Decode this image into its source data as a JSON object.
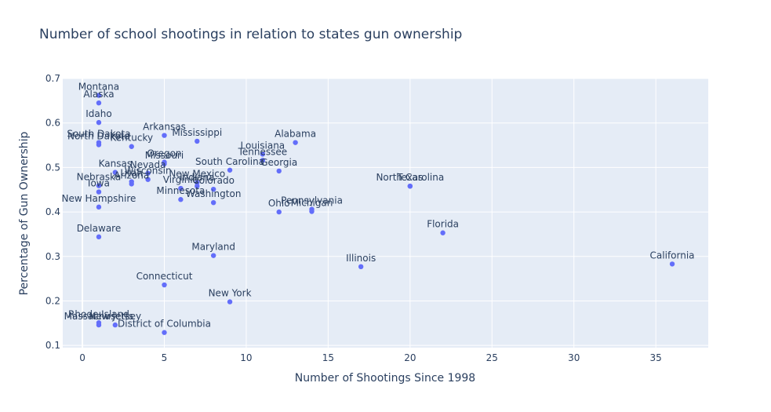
{
  "chart_data": {
    "type": "scatter",
    "title": "Number of school shootings in relation to states gun ownership",
    "xlabel": "Number of Shootings Since 1998",
    "ylabel": "Percentage of Gun Ownership",
    "xlim": [
      -1.2,
      38.2
    ],
    "ylim": [
      0.095,
      0.7
    ],
    "x_ticks": [
      0,
      5,
      10,
      15,
      20,
      25,
      30,
      35
    ],
    "y_ticks": [
      0.1,
      0.2,
      0.3,
      0.4,
      0.5,
      0.6,
      0.7
    ],
    "grid": true,
    "marker_color": "#636efa",
    "points": [
      {
        "label": "Montana",
        "x": 1,
        "y": 0.662
      },
      {
        "label": "Alaska",
        "x": 1,
        "y": 0.645
      },
      {
        "label": "Idaho",
        "x": 1,
        "y": 0.601
      },
      {
        "label": "South Dakota",
        "x": 1,
        "y": 0.556
      },
      {
        "label": "North Dakota",
        "x": 1,
        "y": 0.551
      },
      {
        "label": "Kentucky",
        "x": 3,
        "y": 0.547
      },
      {
        "label": "Arkansas",
        "x": 5,
        "y": 0.572
      },
      {
        "label": "Mississippi",
        "x": 7,
        "y": 0.559
      },
      {
        "label": "Alabama",
        "x": 13,
        "y": 0.556
      },
      {
        "label": "Louisiana",
        "x": 11,
        "y": 0.53
      },
      {
        "label": "Tennessee",
        "x": 11,
        "y": 0.516
      },
      {
        "label": "Oregon",
        "x": 5,
        "y": 0.512
      },
      {
        "label": "Missouri",
        "x": 5,
        "y": 0.508
      },
      {
        "label": "South Carolina",
        "x": 9,
        "y": 0.494
      },
      {
        "label": "Georgia",
        "x": 12,
        "y": 0.492
      },
      {
        "label": "Kansas",
        "x": 2,
        "y": 0.489
      },
      {
        "label": "Nevada",
        "x": 4,
        "y": 0.487
      },
      {
        "label": "Utah",
        "x": 3,
        "y": 0.468
      },
      {
        "label": "Arizona",
        "x": 3,
        "y": 0.463
      },
      {
        "label": "Wisconsin",
        "x": 4,
        "y": 0.473
      },
      {
        "label": "New Mexico",
        "x": 7,
        "y": 0.466
      },
      {
        "label": "Indiana",
        "x": 7,
        "y": 0.458
      },
      {
        "label": "Virginia",
        "x": 6,
        "y": 0.453
      },
      {
        "label": "Colorado",
        "x": 8,
        "y": 0.451
      },
      {
        "label": "North Carolina",
        "x": 20,
        "y": 0.458
      },
      {
        "label": "Texas",
        "x": 20,
        "y": 0.458
      },
      {
        "label": "Nebraska",
        "x": 1,
        "y": 0.459
      },
      {
        "label": "Iowa",
        "x": 1,
        "y": 0.445
      },
      {
        "label": "Minnesota",
        "x": 6,
        "y": 0.428
      },
      {
        "label": "Washington",
        "x": 8,
        "y": 0.421
      },
      {
        "label": "New Hampshire",
        "x": 1,
        "y": 0.411
      },
      {
        "label": "Ohio",
        "x": 12,
        "y": 0.4
      },
      {
        "label": "Pennsylvania",
        "x": 14,
        "y": 0.406
      },
      {
        "label": "Michigan",
        "x": 14,
        "y": 0.401
      },
      {
        "label": "Delaware",
        "x": 1,
        "y": 0.344
      },
      {
        "label": "Florida",
        "x": 22,
        "y": 0.353
      },
      {
        "label": "Maryland",
        "x": 8,
        "y": 0.302
      },
      {
        "label": "Illinois",
        "x": 17,
        "y": 0.277
      },
      {
        "label": "California",
        "x": 36,
        "y": 0.283
      },
      {
        "label": "Connecticut",
        "x": 5,
        "y": 0.236
      },
      {
        "label": "New York",
        "x": 9,
        "y": 0.198
      },
      {
        "label": "Rhode Island",
        "x": 1,
        "y": 0.151
      },
      {
        "label": "Massachusetts",
        "x": 1,
        "y": 0.146
      },
      {
        "label": "New Jersey",
        "x": 2,
        "y": 0.146
      },
      {
        "label": "District of Columbia",
        "x": 5,
        "y": 0.129
      }
    ]
  }
}
